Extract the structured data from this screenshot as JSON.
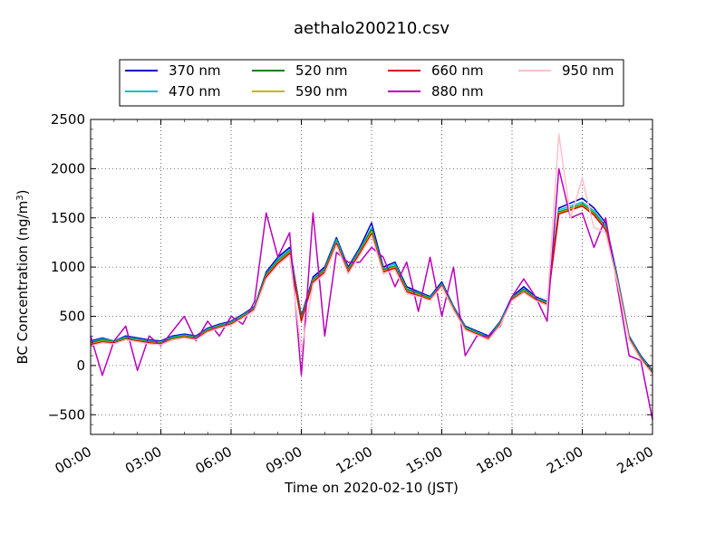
{
  "chart_data": {
    "type": "line",
    "title": "aethalo200210.csv",
    "xlabel": "Time on 2020-02-10 (JST)",
    "ylabel_prefix": "BC Concentration (ng/m",
    "ylabel_sup": "3",
    "ylabel_suffix": ")",
    "xlim": [
      "2020-02-10 00:00",
      "2020-02-11 00:00"
    ],
    "ylim": [
      -700,
      2500
    ],
    "y_ticks": [
      -500,
      0,
      500,
      1000,
      1500,
      2000,
      2500
    ],
    "y_tick_labels": [
      "−500",
      "0",
      "500",
      "1000",
      "1500",
      "2000",
      "2500"
    ],
    "x_ticks": [
      "00:00",
      "03:00",
      "06:00",
      "09:00",
      "12:00",
      "15:00",
      "18:00",
      "21:00",
      "24:00"
    ],
    "grid": true,
    "legend_position": "top",
    "x_times": [
      "00:00",
      "00:30",
      "01:00",
      "01:30",
      "02:00",
      "02:30",
      "03:00",
      "03:30",
      "04:00",
      "04:30",
      "05:00",
      "05:30",
      "06:00",
      "06:30",
      "07:00",
      "07:30",
      "08:00",
      "08:30",
      "09:00",
      "09:30",
      "10:00",
      "10:30",
      "11:00",
      "11:30",
      "12:00",
      "12:30",
      "13:00",
      "13:30",
      "14:00",
      "14:30",
      "15:00",
      "15:30",
      "16:00",
      "16:30",
      "17:00",
      "17:30",
      "18:00",
      "18:30",
      "19:00",
      "19:30",
      "20:00",
      "20:30",
      "21:00",
      "21:30",
      "22:00",
      "22:30",
      "23:00",
      "23:30",
      "24:00"
    ],
    "series": [
      {
        "name": "370 nm",
        "color": "#0000cc",
        "values": [
          250,
          280,
          250,
          300,
          280,
          260,
          250,
          300,
          320,
          300,
          380,
          420,
          450,
          520,
          600,
          950,
          1100,
          1200,
          500,
          900,
          1000,
          1300,
          1000,
          1200,
          1450,
          1000,
          1050,
          800,
          750,
          700,
          850,
          600,
          400,
          350,
          300,
          450,
          700,
          800,
          700,
          650,
          1600,
          1650,
          1700,
          1600,
          1450,
          900,
          300,
          100,
          -50
        ]
      },
      {
        "name": "470 nm",
        "color": "#00bbcc",
        "values": [
          240,
          270,
          250,
          290,
          270,
          250,
          240,
          290,
          310,
          290,
          370,
          410,
          440,
          510,
          590,
          930,
          1080,
          1180,
          480,
          880,
          980,
          1280,
          980,
          1180,
          1400,
          980,
          1030,
          780,
          740,
          690,
          830,
          590,
          390,
          340,
          290,
          440,
          690,
          780,
          690,
          640,
          1580,
          1620,
          1660,
          1570,
          1420,
          880,
          290,
          90,
          -60
        ]
      },
      {
        "name": "520 nm",
        "color": "#008000",
        "values": [
          230,
          260,
          240,
          280,
          260,
          240,
          230,
          280,
          300,
          280,
          360,
          400,
          430,
          500,
          580,
          920,
          1060,
          1160,
          470,
          870,
          970,
          1260,
          970,
          1160,
          1380,
          970,
          1010,
          770,
          730,
          680,
          820,
          580,
          380,
          330,
          280,
          430,
          680,
          770,
          680,
          630,
          1560,
          1600,
          1640,
          1550,
          1400,
          870,
          280,
          80,
          -70
        ]
      },
      {
        "name": "590 nm",
        "color": "#bbbb00",
        "values": [
          220,
          250,
          235,
          270,
          255,
          235,
          225,
          270,
          295,
          275,
          355,
          395,
          425,
          495,
          575,
          910,
          1050,
          1150,
          460,
          860,
          960,
          1250,
          960,
          1150,
          1360,
          960,
          1000,
          760,
          720,
          675,
          815,
          575,
          375,
          325,
          275,
          425,
          675,
          760,
          675,
          625,
          1550,
          1590,
          1630,
          1540,
          1390,
          860,
          275,
          75,
          -75
        ]
      },
      {
        "name": "660 nm",
        "color": "#dd0000",
        "values": [
          210,
          240,
          230,
          265,
          250,
          230,
          220,
          265,
          290,
          270,
          350,
          390,
          420,
          490,
          570,
          900,
          1040,
          1140,
          450,
          850,
          950,
          1240,
          950,
          1140,
          1340,
          950,
          990,
          750,
          710,
          670,
          810,
          570,
          370,
          320,
          270,
          420,
          670,
          750,
          670,
          620,
          1540,
          1580,
          1620,
          1530,
          1380,
          850,
          270,
          70,
          -80
        ]
      },
      {
        "name": "880 nm",
        "color": "#bb00bb",
        "values": [
          300,
          -100,
          250,
          400,
          -50,
          300,
          200,
          350,
          500,
          250,
          450,
          300,
          500,
          420,
          650,
          1550,
          1100,
          1350,
          -100,
          1550,
          300,
          1150,
          1050,
          1050,
          1200,
          1100,
          800,
          1050,
          550,
          1100,
          500,
          1000,
          100,
          300,
          300,
          400,
          700,
          880,
          700,
          450,
          2000,
          1500,
          1550,
          1200,
          1500,
          800,
          100,
          50,
          -550
        ]
      },
      {
        "name": "950 nm",
        "color": "#ffc0cb",
        "values": [
          200,
          230,
          220,
          260,
          240,
          220,
          210,
          260,
          280,
          260,
          340,
          380,
          410,
          480,
          560,
          880,
          1020,
          1120,
          150,
          830,
          930,
          1220,
          930,
          1120,
          1320,
          930,
          970,
          730,
          700,
          660,
          800,
          560,
          360,
          310,
          260,
          410,
          660,
          740,
          660,
          610,
          2350,
          1500,
          1900,
          1400,
          1350,
          840,
          260,
          60,
          -90
        ]
      }
    ]
  }
}
